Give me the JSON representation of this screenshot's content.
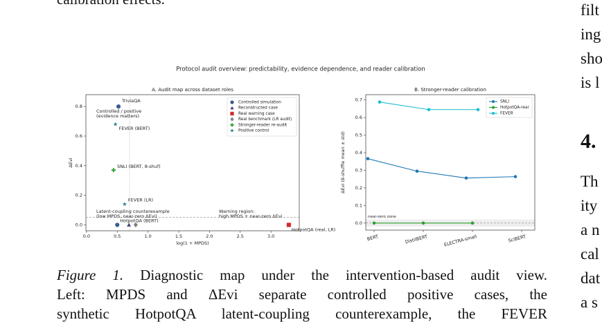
{
  "page": {
    "top_text": "calibration effects.",
    "caption": {
      "label": "Figure 1.",
      "lines": [
        "Diagnostic map under the intervention-based audit view.",
        "Left: MPDS and ΔEvi separate controlled positive cases, the",
        "synthetic HotpotQA latent-coupling counterexample, the FEVER"
      ]
    },
    "right_column": [
      "filt",
      "ing",
      "sho",
      "is l",
      "4.",
      "Th",
      "ity",
      "a n",
      "cal",
      "dat",
      "a s"
    ]
  },
  "figure_title": "Protocol audit overview: predictability, evidence dependence, and reader calibration",
  "chart_data": [
    {
      "type": "scatter",
      "title": "A. Audit map across dataset roles",
      "x_label": "log(1 + MPDS)",
      "y_label": "ΔEvi",
      "xlim": [
        -0.01,
        3.46
      ],
      "ylim": [
        -0.04,
        0.88
      ],
      "xticks": [
        {
          "value": 0,
          "label": "0.0"
        },
        {
          "value": 0.5,
          "label": "0.5"
        },
        {
          "value": 1,
          "label": "1.0"
        },
        {
          "value": 1.5,
          "label": "1.5"
        },
        {
          "value": 2,
          "label": "2.0"
        },
        {
          "value": 2.5,
          "label": "2.5"
        },
        {
          "value": 3,
          "label": "3.0"
        }
      ],
      "yticks": [
        {
          "value": 0,
          "label": "0.0"
        },
        {
          "value": 0.2,
          "label": "0.2"
        },
        {
          "value": 0.4,
          "label": "0.4"
        },
        {
          "value": 0.6,
          "label": "0.6"
        },
        {
          "value": 0.8,
          "label": "0.8"
        }
      ],
      "thresholds": {
        "x": 0.7,
        "y": 0.05
      },
      "series": [
        {
          "name": "Controlled simulation",
          "color": "#3b5b92",
          "marker": "circle",
          "x": [
            0.52,
            0.5
          ],
          "values": [
            0.8,
            0.0
          ],
          "labels": [
            "TriviaQA",
            "HotpotQA (BERT)"
          ]
        },
        {
          "name": "Reconstructed case",
          "color": "#4b3f7a",
          "marker": "triangle",
          "x": [
            0.69
          ],
          "values": [
            0.0
          ],
          "labels": [
            null
          ]
        },
        {
          "name": "Real warning case",
          "color": "#d62728",
          "marker": "square",
          "x": [
            3.29
          ],
          "values": [
            0.0
          ],
          "labels": [
            "HotpotQA (real, LR)"
          ]
        },
        {
          "name": "Real benchmark (LR audit)",
          "color": "#7f7f7f",
          "marker": "diamond",
          "x": [
            0.8
          ],
          "values": [
            0.0
          ],
          "labels": [
            null
          ]
        },
        {
          "name": "Stronger-reader re-audit",
          "color": "#2ca02c",
          "marker": "plus",
          "x": [
            0.44
          ],
          "values": [
            0.37
          ],
          "labels": [
            "SNLI (BERT, 8-shuf)"
          ]
        },
        {
          "name": "Positive control",
          "color": "#2a7f7f",
          "marker": "star",
          "x": [
            0.47,
            0.62
          ],
          "values": [
            0.68,
            0.14
          ],
          "labels": [
            "FEVER (BERT)",
            "FEVER (LR)"
          ]
        }
      ],
      "annotations": [
        {
          "lines": [
            "Controlled / positive",
            "(evidence matters)"
          ],
          "color": "#3b6ea8"
        },
        {
          "lines": [
            "Latent-coupling counterexample",
            "(low MPDS, near-zero ΔEvi)"
          ],
          "color": "#3b6ea8"
        },
        {
          "lines": [
            "Warning region:",
            "high MPDS + near-zero ΔEvi"
          ],
          "color": "#c0392b"
        }
      ]
    },
    {
      "type": "line",
      "title": "B. Stronger-reader calibration",
      "y_label": "ΔEvi (8-shuffle mean ± std)",
      "categories": [
        "BERT",
        "DistilBERT",
        "ELECTRA-small",
        "SciBERT"
      ],
      "ylim": [
        -0.04,
        0.73
      ],
      "yticks": [
        {
          "value": 0,
          "label": "0.0"
        },
        0.1,
        0.2,
        0.3,
        0.4,
        0.5,
        0.6,
        0.7
      ],
      "near_zero_band": [
        -0.02,
        0.02
      ],
      "near_zero_label": "near-zero zone",
      "legend": "upper right",
      "series": [
        {
          "name": "SNLI",
          "color": "#1f77b4",
          "values": [
            0.366,
            0.295,
            0.256,
            0.264
          ]
        },
        {
          "name": "HotpotQA-real",
          "color": "#2ca02c",
          "values": [
            0.0,
            0.0,
            0.0,
            null
          ]
        },
        {
          "name": "FEVER",
          "color": "#17becf",
          "values": [
            0.688,
            0.645,
            0.645,
            null
          ]
        }
      ]
    }
  ]
}
